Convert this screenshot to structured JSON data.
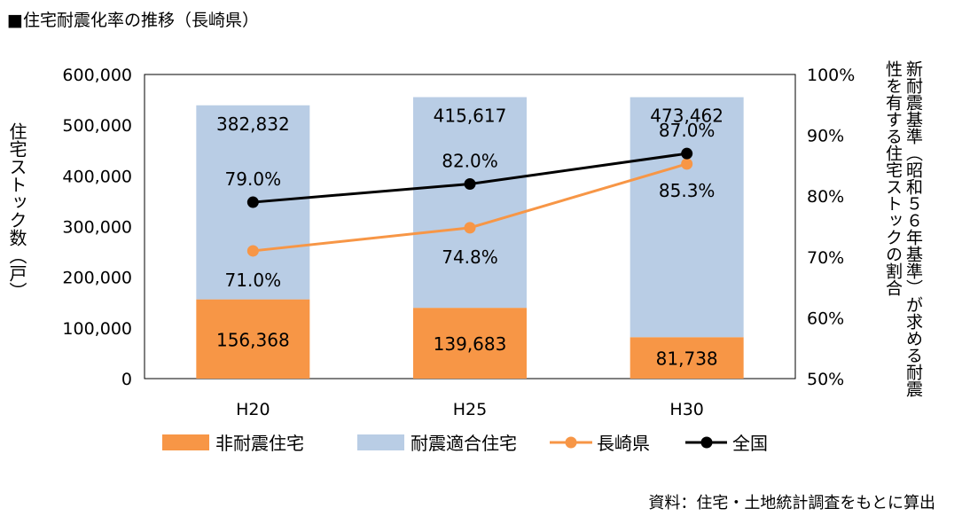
{
  "title": "■住宅耐震化率の推移（長崎県）",
  "source": "資料：住宅・土地統計調査をもとに算出",
  "left_axis_label": "住宅ストック数（戸）",
  "right_axis_label": "新耐震基準（昭和５６年基準）が求める耐震性を有する住宅ストックの割合",
  "colors": {
    "non_resistant": "#F79646",
    "resistant": "#B9CDE5",
    "nagasaki": "#F79646",
    "national": "#000000"
  },
  "chart_data": {
    "type": "bar",
    "categories": [
      "H20",
      "H25",
      "H30"
    ],
    "stacked": true,
    "series": [
      {
        "name": "非耐震住宅",
        "values": [
          156368,
          139683,
          81738
        ],
        "labels": [
          "156,368",
          "139,683",
          "81,738"
        ]
      },
      {
        "name": "耐震適合住宅",
        "values": [
          382832,
          415617,
          473462
        ],
        "labels": [
          "382,832",
          "415,617",
          "473,462"
        ]
      }
    ],
    "line_series": [
      {
        "name": "長崎県",
        "values": [
          71.0,
          74.8,
          85.3
        ],
        "labels": [
          "71.0%",
          "74.8%",
          "85.3%"
        ],
        "axis": "right"
      },
      {
        "name": "全国",
        "values": [
          79.0,
          82.0,
          87.0
        ],
        "labels": [
          "79.0%",
          "82.0%",
          "87.0%"
        ],
        "axis": "right"
      }
    ],
    "ylim": [
      0,
      600000
    ],
    "y2lim": [
      50,
      100
    ],
    "yticks": [
      "0",
      "100,000",
      "200,000",
      "300,000",
      "400,000",
      "500,000",
      "600,000"
    ],
    "y2ticks": [
      "50%",
      "60%",
      "70%",
      "80%",
      "90%",
      "100%"
    ],
    "legend_position": "bottom"
  }
}
